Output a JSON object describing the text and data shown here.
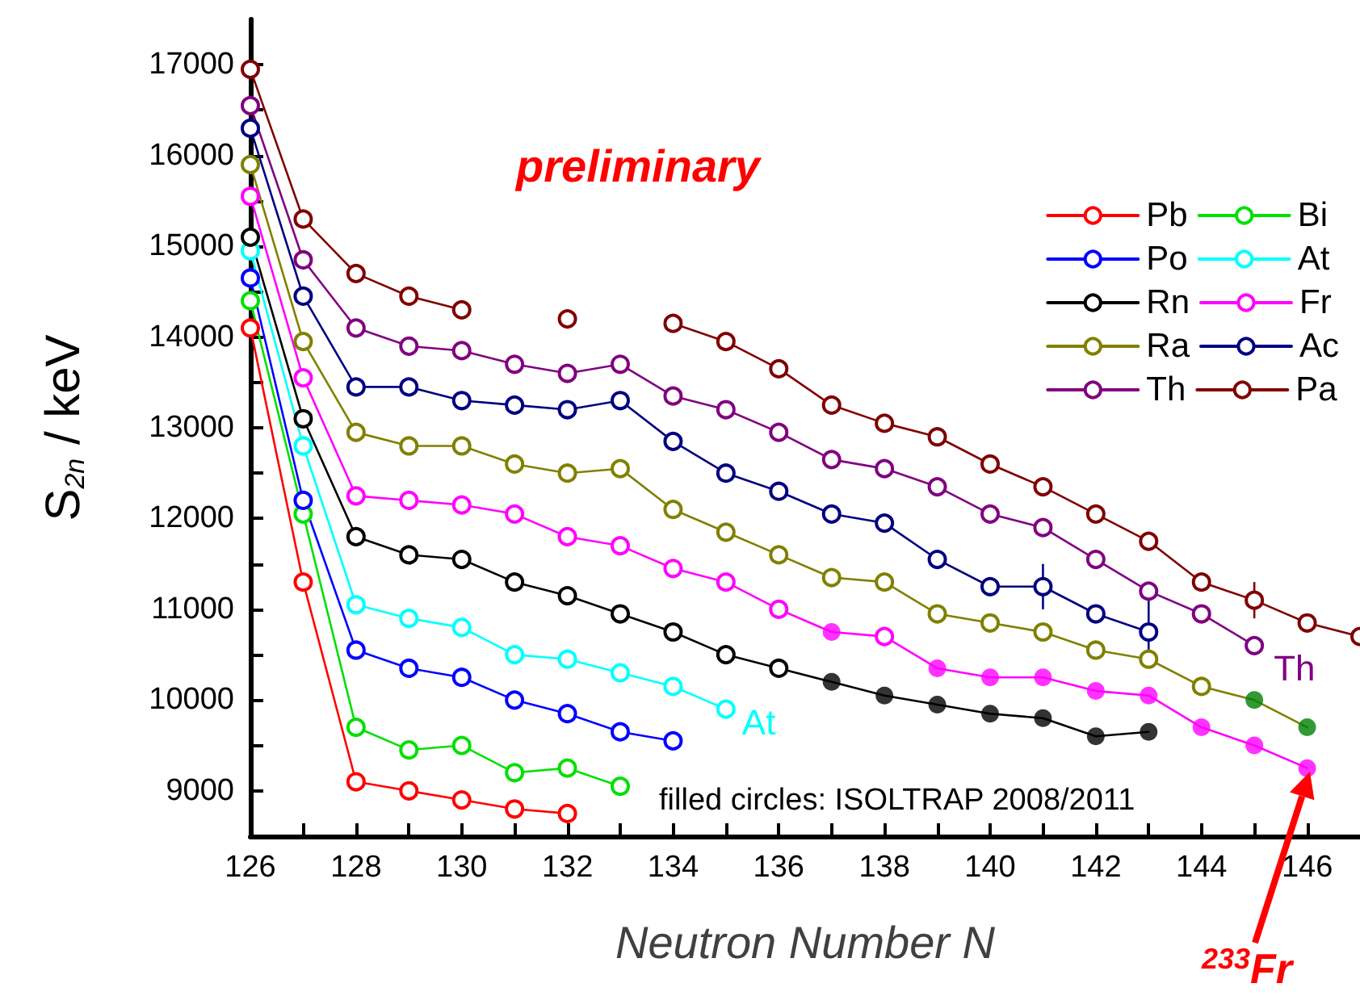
{
  "chart_data": {
    "type": "line",
    "xlabel": "Neutron Number N",
    "ylabel": "S$_{2n}$ / keV",
    "xlim": [
      126,
      147
    ],
    "xticks": [
      126,
      128,
      130,
      132,
      134,
      136,
      138,
      140,
      142,
      144,
      146
    ],
    "ylim": [
      8500,
      17500
    ],
    "yticks": [
      9000,
      10000,
      11000,
      12000,
      13000,
      14000,
      15000,
      16000,
      17000
    ],
    "grid": false,
    "legend": "top right",
    "marker": "circle",
    "annotations": [
      "preliminary",
      "filled circles: ISOLTRAP 2008/2011",
      {
        "text": "At",
        "x": 135,
        "y": 9900
      },
      {
        "text": "Th",
        "x": 145,
        "y": 10600
      },
      "$^{233}$Fr"
    ],
    "series": [
      {
        "name": "Pb",
        "color": "#ff0000",
        "x": [
          126,
          127,
          128,
          129,
          130,
          131,
          132
        ],
        "values": [
          14100,
          11300,
          9100,
          9000,
          8900,
          8800,
          8750
        ]
      },
      {
        "name": "Bi",
        "color": "#00e000",
        "x": [
          126,
          127,
          128,
          129,
          130,
          131,
          132,
          133
        ],
        "values": [
          14400,
          12050,
          9700,
          9450,
          9500,
          9200,
          9250,
          9050
        ]
      },
      {
        "name": "Po",
        "color": "#0000ff",
        "x": [
          126,
          127,
          128,
          129,
          130,
          131,
          132,
          133,
          134
        ],
        "values": [
          14650,
          12200,
          10550,
          10350,
          10250,
          10000,
          9850,
          9650,
          9550
        ]
      },
      {
        "name": "At",
        "color": "#00ffff",
        "x": [
          126,
          127,
          128,
          129,
          130,
          131,
          132,
          133,
          134,
          135
        ],
        "values": [
          14950,
          12800,
          11050,
          10900,
          10800,
          10500,
          10450,
          10300,
          10150,
          9900
        ]
      },
      {
        "name": "Rn",
        "color": "#000000",
        "x": [
          126,
          127,
          128,
          129,
          130,
          131,
          132,
          133,
          134,
          135,
          136,
          137,
          138,
          139,
          140,
          141,
          142,
          143
        ],
        "values": [
          15100,
          13100,
          11800,
          11600,
          11550,
          11300,
          11150,
          10950,
          10750,
          10500,
          10350,
          10200,
          10050,
          9950,
          9850,
          9800,
          9600,
          9650
        ]
      },
      {
        "name": "Fr",
        "color": "#ff00ff",
        "x": [
          126,
          127,
          128,
          129,
          130,
          131,
          132,
          133,
          134,
          135,
          136,
          137,
          138,
          139,
          140,
          141,
          142,
          143,
          144,
          145,
          146
        ],
        "values": [
          15550,
          13550,
          12250,
          12200,
          12150,
          12050,
          11800,
          11700,
          11450,
          11300,
          11000,
          10750,
          10700,
          10350,
          10250,
          10250,
          10100,
          10050,
          9700,
          9500,
          9250
        ]
      },
      {
        "name": "Ra",
        "color": "#808000",
        "x": [
          126,
          127,
          128,
          129,
          130,
          131,
          132,
          133,
          134,
          135,
          136,
          137,
          138,
          139,
          140,
          141,
          142,
          143,
          144,
          145,
          146
        ],
        "values": [
          15900,
          13950,
          12950,
          12800,
          12800,
          12600,
          12500,
          12550,
          12100,
          11850,
          11600,
          11350,
          11300,
          10950,
          10850,
          10750,
          10550,
          10450,
          10150,
          10000,
          9700
        ]
      },
      {
        "name": "Ac",
        "color": "#000080",
        "x": [
          126,
          127,
          128,
          129,
          130,
          131,
          132,
          133,
          134,
          135,
          136,
          137,
          138,
          139,
          140,
          141,
          142,
          143
        ],
        "values": [
          16300,
          14450,
          13450,
          13450,
          13300,
          13250,
          13200,
          13300,
          12850,
          12500,
          12300,
          12050,
          11950,
          11550,
          11250,
          11250,
          10950,
          10750
        ],
        "errors": [
          null,
          null,
          null,
          null,
          null,
          null,
          null,
          null,
          null,
          null,
          null,
          null,
          null,
          null,
          null,
          250,
          null,
          [
            10400,
            11100
          ]
        ]
      },
      {
        "name": "Th",
        "color": "#800080",
        "x": [
          126,
          127,
          128,
          129,
          130,
          131,
          132,
          133,
          134,
          135,
          136,
          137,
          138,
          139,
          140,
          141,
          142,
          143,
          144,
          145
        ],
        "values": [
          16550,
          14850,
          14100,
          13900,
          13850,
          13700,
          13600,
          13700,
          13350,
          13200,
          12950,
          12650,
          12550,
          12350,
          12050,
          11900,
          11550,
          11200,
          10950,
          10600
        ]
      },
      {
        "name": "Pa",
        "color": "#800000",
        "x": [
          126,
          127,
          128,
          129,
          130,
          131,
          132,
          133,
          134,
          135,
          136,
          137,
          138,
          139,
          140,
          141,
          142,
          143,
          144,
          145,
          146,
          147
        ],
        "values": [
          16950,
          15300,
          14700,
          14450,
          14300,
          null,
          14200,
          null,
          14150,
          13950,
          13650,
          13250,
          13050,
          12900,
          12600,
          12350,
          12050,
          11750,
          11300,
          11100,
          10850,
          10700
        ],
        "errors": [
          null,
          null,
          null,
          null,
          null,
          null,
          null,
          null,
          null,
          null,
          null,
          null,
          null,
          null,
          null,
          null,
          null,
          null,
          null,
          200,
          null,
          null
        ]
      },
      {
        "type": "scatter",
        "color": "#000000",
        "x": [
          137,
          138,
          139,
          140,
          141,
          142,
          143
        ],
        "values": [
          10200,
          10050,
          9950,
          9850,
          9800,
          9600,
          9650
        ]
      },
      {
        "type": "scatter",
        "color": "#ff00ff",
        "x": [
          137,
          139,
          140,
          141,
          142,
          143,
          144,
          145,
          146
        ],
        "values": [
          10750,
          10350,
          10250,
          10250,
          10100,
          10050,
          9700,
          9500,
          9250
        ]
      },
      {
        "type": "scatter",
        "color": "#008000",
        "x": [
          145,
          146
        ],
        "values": [
          10000,
          9700
        ]
      }
    ]
  }
}
